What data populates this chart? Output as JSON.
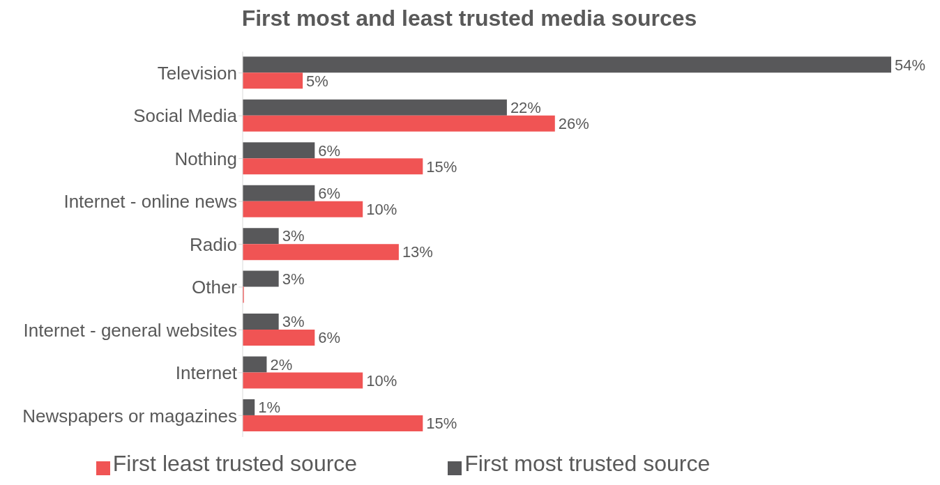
{
  "chart_data": {
    "type": "bar",
    "orientation": "horizontal",
    "title": "First most and least trusted media sources",
    "categories": [
      "Television",
      "Social Media",
      "Nothing",
      "Internet - online news",
      "Radio",
      "Other",
      "Internet - general websites",
      "Internet",
      "Newspapers or magazines"
    ],
    "series": [
      {
        "name": "First most trusted source",
        "color": "#58585a",
        "values": [
          54,
          22,
          6,
          6,
          3,
          3,
          3,
          2,
          1
        ],
        "value_labels": [
          "54%",
          "22%",
          "6%",
          "6%",
          "3%",
          "3%",
          "3%",
          "2%",
          "1%"
        ]
      },
      {
        "name": "First least trusted source",
        "color": "#f05454",
        "values": [
          5,
          26,
          15,
          10,
          13,
          0.1,
          6,
          10,
          15
        ],
        "value_labels": [
          "5%",
          "26%",
          "15%",
          "10%",
          "13%",
          null,
          "6%",
          "10%",
          "15%"
        ]
      }
    ],
    "legend": "bottom"
  }
}
